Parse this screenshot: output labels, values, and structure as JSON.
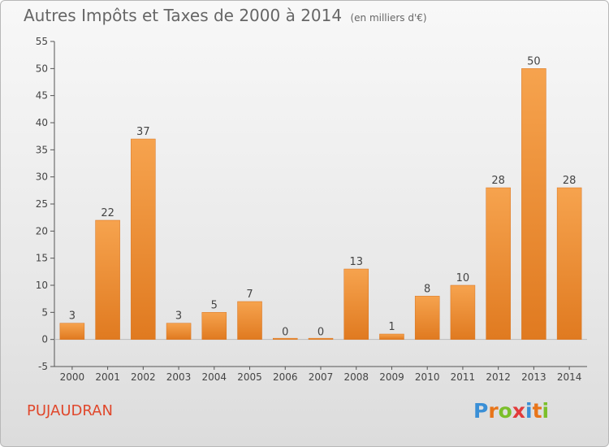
{
  "header": {
    "title": "Autres Impôts et Taxes de 2000 à 2014",
    "unit": "(en milliers d'€)"
  },
  "commune": "PUJAUDRAN",
  "logo": {
    "letters": [
      "P",
      "r",
      "o",
      "x",
      "i",
      "t",
      "i"
    ],
    "colors": [
      "#3a8fd6",
      "#e8751a",
      "#7bbf2a",
      "#e23b3b",
      "#3a8fd6",
      "#e8751a",
      "#7bbf2a"
    ]
  },
  "colors": {
    "bar_top": "#f6a34e",
    "bar_bottom": "#e07a20",
    "axis": "#555555",
    "grid": "#d0d0d0"
  },
  "chart_data": {
    "type": "bar",
    "title": "Autres Impôts et Taxes de 2000 à 2014",
    "subtitle": "(en milliers d'€)",
    "categories": [
      "2000",
      "2001",
      "2002",
      "2003",
      "2004",
      "2005",
      "2006",
      "2007",
      "2008",
      "2009",
      "2010",
      "2011",
      "2012",
      "2013",
      "2014"
    ],
    "values": [
      3,
      22,
      37,
      3,
      5,
      7,
      0,
      0,
      13,
      1,
      8,
      10,
      28,
      50,
      28
    ],
    "ylim": [
      -5,
      55
    ],
    "yticks": [
      -5,
      0,
      5,
      10,
      15,
      20,
      25,
      30,
      35,
      40,
      45,
      50,
      55
    ],
    "grid": false,
    "data_labels": true
  }
}
